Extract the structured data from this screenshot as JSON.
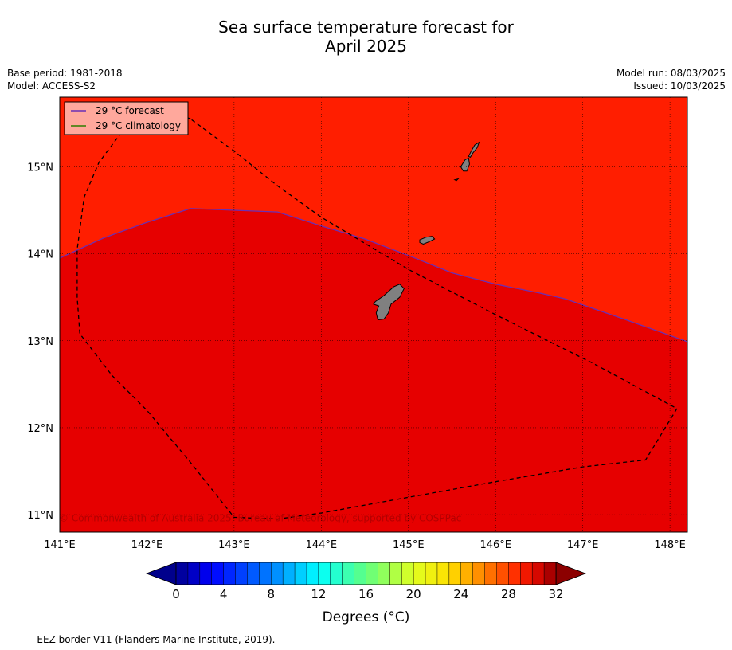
{
  "title_line1": "Sea surface temperature forecast for",
  "title_line2": "April 2025",
  "meta_left": {
    "base_period": "Base period: 1981-2018",
    "model": "Model: ACCESS-S2"
  },
  "meta_right": {
    "model_run": "Model run: 08/03/2025",
    "issued": "Issued: 10/03/2025"
  },
  "map": {
    "lon_range": [
      141.0,
      148.2
    ],
    "lat_range": [
      10.8,
      15.8
    ],
    "lon_ticks": [
      141,
      142,
      143,
      144,
      145,
      146,
      147,
      148
    ],
    "lon_labels": [
      "141°E",
      "142°E",
      "143°E",
      "144°E",
      "145°E",
      "146°E",
      "147°E",
      "148°E"
    ],
    "lat_ticks": [
      11,
      12,
      13,
      14,
      15
    ],
    "lat_labels": [
      "11°N",
      "12°N",
      "13°N",
      "14°N",
      "15°N"
    ],
    "upper_region_color": "#ff1e00",
    "lower_region_color": "#e60000",
    "land_color": "#808080",
    "forecast_line_color": "#6a2fb5",
    "climatology_line_color": "#2e7d00",
    "forecast_29C_line": [
      [
        141.0,
        13.95
      ],
      [
        141.5,
        14.18
      ],
      [
        142.0,
        14.36
      ],
      [
        142.5,
        14.52
      ],
      [
        143.0,
        14.5
      ],
      [
        143.5,
        14.48
      ],
      [
        144.0,
        14.32
      ],
      [
        144.5,
        14.17
      ],
      [
        145.0,
        13.98
      ],
      [
        145.5,
        13.78
      ],
      [
        146.0,
        13.65
      ],
      [
        146.5,
        13.55
      ],
      [
        146.8,
        13.48
      ],
      [
        147.5,
        13.24
      ],
      [
        148.2,
        12.99
      ]
    ],
    "eez_border": [
      [
        142.5,
        15.55
      ],
      [
        142.3,
        15.63
      ],
      [
        142.05,
        15.66
      ],
      [
        141.75,
        15.45
      ],
      [
        141.45,
        15.05
      ],
      [
        141.28,
        14.65
      ],
      [
        141.2,
        14.05
      ],
      [
        141.2,
        13.5
      ],
      [
        141.23,
        13.08
      ],
      [
        141.6,
        12.6
      ],
      [
        142.0,
        12.2
      ],
      [
        142.5,
        11.6
      ],
      [
        143.0,
        10.97
      ],
      [
        143.5,
        10.95
      ],
      [
        144.0,
        11.02
      ],
      [
        145.0,
        11.2
      ],
      [
        146.0,
        11.38
      ],
      [
        147.0,
        11.55
      ],
      [
        147.72,
        11.63
      ],
      [
        148.08,
        12.22
      ],
      [
        147.1,
        12.75
      ],
      [
        146.0,
        13.3
      ],
      [
        145.0,
        13.82
      ],
      [
        144.0,
        14.42
      ],
      [
        143.5,
        14.78
      ],
      [
        143.0,
        15.18
      ],
      [
        142.5,
        15.55
      ]
    ],
    "islands": [
      [
        [
          144.62,
          13.45
        ],
        [
          144.72,
          13.52
        ],
        [
          144.83,
          13.62
        ],
        [
          144.9,
          13.65
        ],
        [
          144.95,
          13.6
        ],
        [
          144.9,
          13.5
        ],
        [
          144.8,
          13.42
        ],
        [
          144.77,
          13.32
        ],
        [
          144.72,
          13.25
        ],
        [
          144.65,
          13.24
        ],
        [
          144.63,
          13.32
        ],
        [
          144.66,
          13.4
        ],
        [
          144.6,
          13.42
        ]
      ],
      [
        [
          145.13,
          14.16
        ],
        [
          145.2,
          14.19
        ],
        [
          145.27,
          14.2
        ],
        [
          145.3,
          14.17
        ],
        [
          145.24,
          14.14
        ],
        [
          145.17,
          14.11
        ],
        [
          145.13,
          14.13
        ]
      ],
      [
        [
          145.6,
          15.0
        ],
        [
          145.65,
          15.08
        ],
        [
          145.69,
          15.1
        ],
        [
          145.7,
          15.03
        ],
        [
          145.67,
          14.95
        ],
        [
          145.63,
          14.95
        ]
      ],
      [
        [
          145.69,
          15.12
        ],
        [
          145.72,
          15.18
        ],
        [
          145.76,
          15.25
        ],
        [
          145.81,
          15.28
        ],
        [
          145.79,
          15.22
        ],
        [
          145.74,
          15.16
        ],
        [
          145.71,
          15.11
        ]
      ],
      [
        [
          145.53,
          14.85
        ],
        [
          145.57,
          14.86
        ],
        [
          145.55,
          14.84
        ]
      ]
    ],
    "legend": {
      "forecast": "29 °C  forecast",
      "climatology": "29 °C  climatology"
    },
    "copyright": "© Commonwealth of Australia 2025, Bureau of Meteorology, supported by COSPPac"
  },
  "colorbar": {
    "min": 0,
    "max": 32,
    "step": 1,
    "ticks": [
      0,
      4,
      8,
      12,
      16,
      20,
      24,
      28,
      32
    ],
    "tick_labels": [
      "0",
      "4",
      "8",
      "12",
      "16",
      "20",
      "24",
      "28",
      "32"
    ],
    "label": "Degrees (°C)",
    "extend_low_color": "#00008c",
    "extend_high_color": "#8c0000"
  },
  "footer": "-- -- -- EEZ border V11 (Flanders Marine Institute, 2019)."
}
